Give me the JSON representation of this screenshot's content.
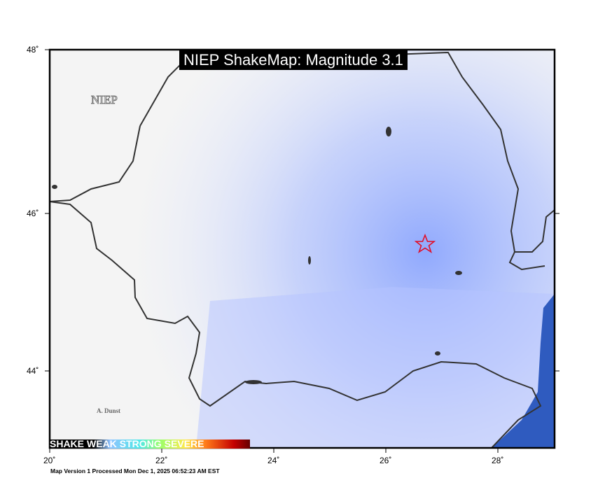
{
  "title": "NIEP ShakeMap: Magnitude 3.1",
  "credit": "NIEP",
  "author": "A. Dunst",
  "footer": "Map Version 1 Processed Mon Dec  1, 2025 06:52:23 AM EST",
  "axes": {
    "lon_ticks": [
      "20˚",
      "22˚",
      "24˚",
      "26˚",
      "28˚"
    ],
    "lat_ticks": [
      "48˚",
      "46˚",
      "44˚"
    ],
    "lon_range": [
      20,
      29
    ],
    "lat_range": [
      43.1,
      48
    ]
  },
  "legend": {
    "labels": [
      "SHAKE",
      "WEAK",
      "STRONG",
      "SEVERE"
    ]
  },
  "epicenter": {
    "lon": 26.7,
    "lat": 45.6,
    "symbol": "star-icon",
    "color": "#e0102a"
  },
  "colors": {
    "intensity": "#8fa6ff",
    "sea": "#2f5bbf",
    "border": "#333333"
  }
}
